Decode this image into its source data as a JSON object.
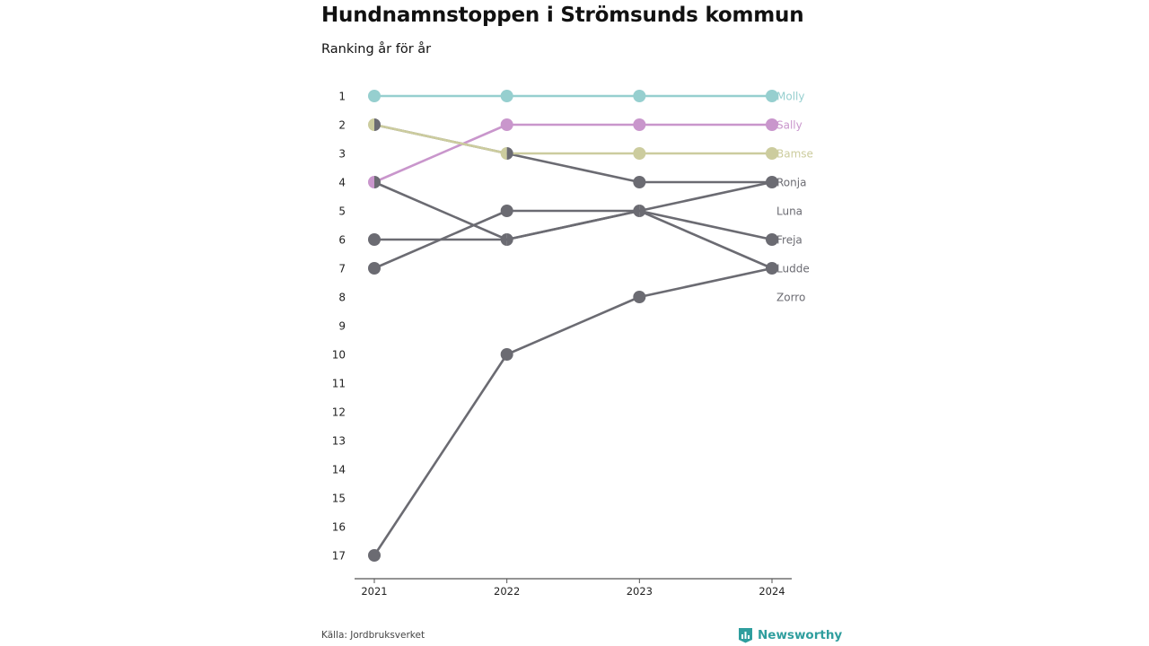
{
  "header": {
    "title": "Hundnamnstoppen i Strömsunds kommun",
    "subtitle": "Ranking år för år"
  },
  "footer": {
    "source": "Källa: Jordbruksverket",
    "brand": "Newsworthy"
  },
  "colors": {
    "highlight_1": "#96cfcf",
    "highlight_2": "#c996cc",
    "highlight_3": "#cccc9e",
    "other": "#6b6b72",
    "axis": "#555555",
    "brand": "#2f9e9e"
  },
  "chart_data": {
    "type": "line",
    "x": [
      "2021",
      "2022",
      "2023",
      "2024"
    ],
    "y_ticks": [
      1,
      2,
      3,
      4,
      5,
      6,
      7,
      8,
      9,
      10,
      11,
      12,
      13,
      14,
      15,
      16,
      17
    ],
    "ylim": [
      1,
      17
    ],
    "y_inverted": true,
    "grid": false,
    "series": [
      {
        "name": "Molly",
        "values": [
          1,
          1,
          1,
          1
        ],
        "color": "#96cfcf"
      },
      {
        "name": "Sally",
        "values": [
          4,
          2,
          2,
          2
        ],
        "color": "#c996cc"
      },
      {
        "name": "Bamse",
        "values": [
          2,
          3,
          3,
          3
        ],
        "color": "#cccc9e"
      },
      {
        "name": "Ronja",
        "values": [
          2,
          3,
          4,
          4
        ],
        "color": "#6b6b72"
      },
      {
        "name": "Luna",
        "values": [
          7,
          5,
          5,
          4
        ],
        "color": "#6b6b72"
      },
      {
        "name": "Freja",
        "values": [
          4,
          6,
          5,
          6
        ],
        "color": "#6b6b72"
      },
      {
        "name": "Ludde",
        "values": [
          6,
          6,
          5,
          7
        ],
        "color": "#6b6b72"
      },
      {
        "name": "Zorro",
        "values": [
          17,
          10,
          8,
          7
        ],
        "color": "#6b6b72"
      }
    ],
    "end_labels": [
      "Molly",
      "Sally",
      "Bamse",
      "Ronja",
      "Luna",
      "Freja",
      "Ludde",
      "Zorro"
    ]
  }
}
